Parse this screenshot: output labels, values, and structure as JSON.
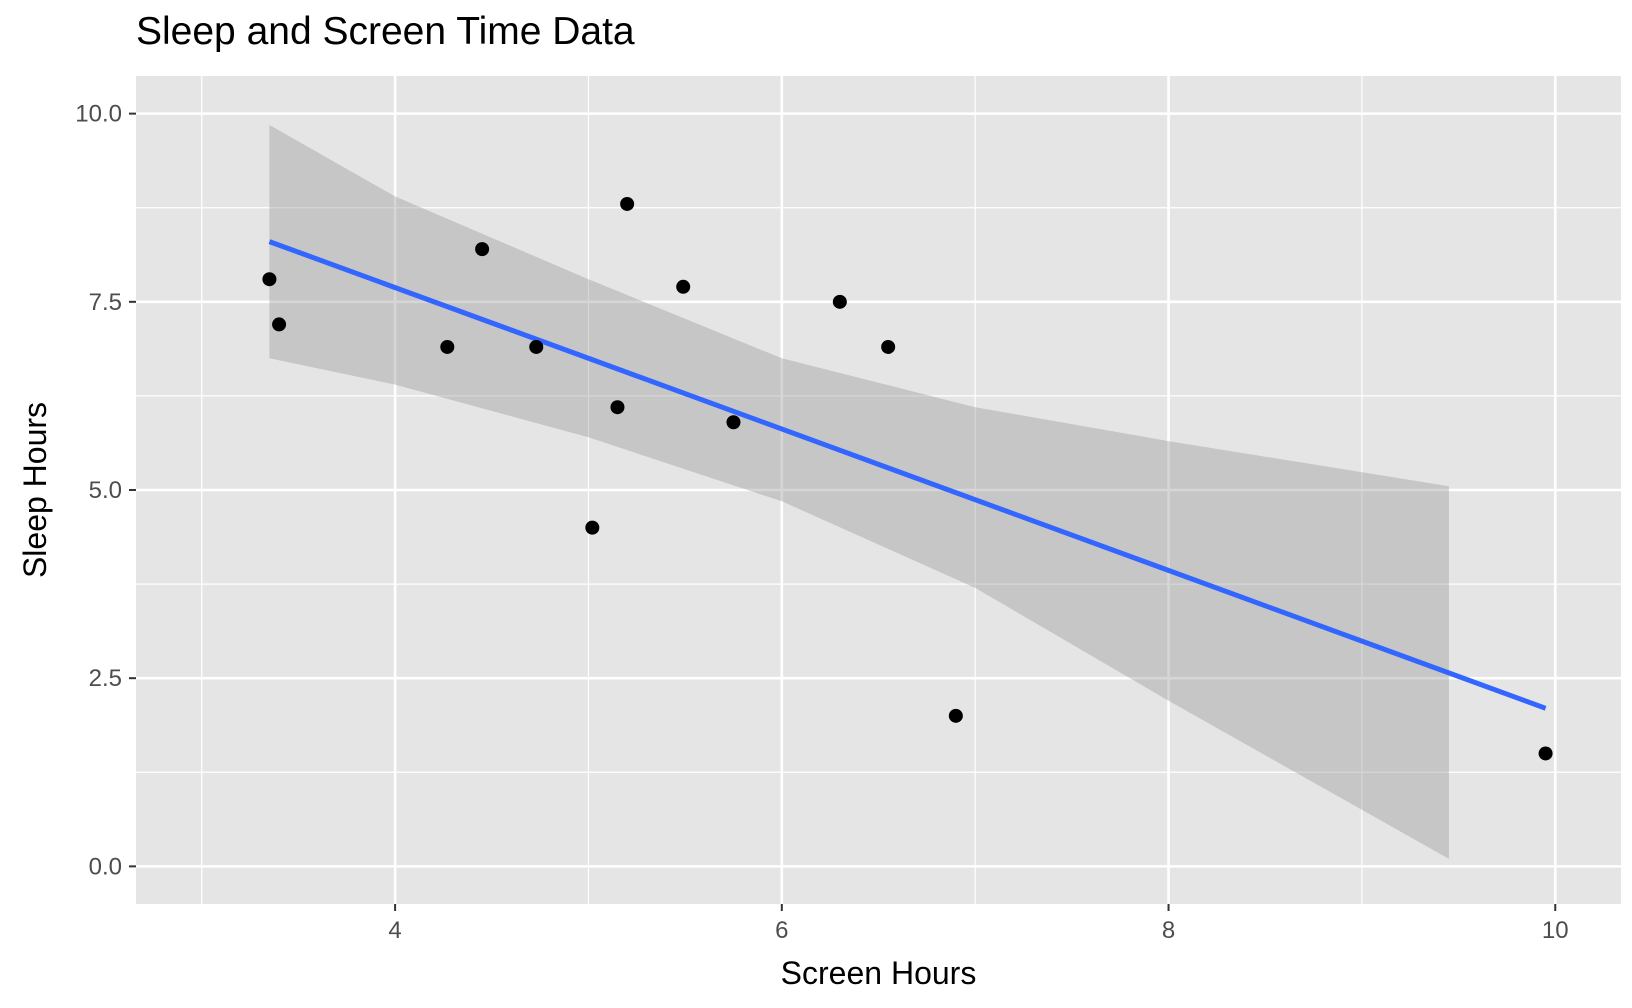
{
  "chart_data": {
    "type": "scatter",
    "title": "Sleep and Screen Time Data",
    "xlabel": "Screen Hours",
    "ylabel": "Sleep Hours",
    "xlim": [
      2.66,
      10.34
    ],
    "ylim": [
      -0.5,
      10.5
    ],
    "x_ticks": [
      4,
      6,
      8,
      10
    ],
    "x_tick_labels": [
      "4",
      "6",
      "8",
      "10"
    ],
    "y_ticks": [
      0,
      2.5,
      5,
      7.5,
      10
    ],
    "y_tick_labels": [
      "0.0",
      "2.5",
      "5.0",
      "7.5",
      "10.0"
    ],
    "grid": true,
    "points": [
      {
        "x": 3.35,
        "y": 7.8
      },
      {
        "x": 3.4,
        "y": 7.2
      },
      {
        "x": 4.27,
        "y": 6.9
      },
      {
        "x": 4.45,
        "y": 8.2
      },
      {
        "x": 4.73,
        "y": 6.9
      },
      {
        "x": 5.02,
        "y": 4.5
      },
      {
        "x": 5.15,
        "y": 6.1
      },
      {
        "x": 5.2,
        "y": 8.8
      },
      {
        "x": 5.49,
        "y": 7.7
      },
      {
        "x": 5.75,
        "y": 5.9
      },
      {
        "x": 6.3,
        "y": 7.5
      },
      {
        "x": 6.55,
        "y": 6.9
      },
      {
        "x": 6.9,
        "y": 2.0
      },
      {
        "x": 9.95,
        "y": 1.5
      }
    ],
    "fit_line": {
      "x": [
        3.35,
        9.95
      ],
      "y": [
        8.3,
        2.1
      ]
    },
    "confidence_band": {
      "x": [
        3.35,
        4.0,
        5.0,
        6.0,
        7.0,
        8.0,
        9.45
      ],
      "upper": [
        9.85,
        8.9,
        7.8,
        6.75,
        6.1,
        5.65,
        5.05
      ],
      "lower": [
        6.75,
        6.4,
        5.7,
        4.85,
        3.7,
        2.2,
        0.1
      ]
    },
    "colors": {
      "panel": "#e5e5e5",
      "grid": "#ffffff",
      "point": "#000000",
      "fit_line": "#3366ff",
      "band": "#999999"
    }
  }
}
